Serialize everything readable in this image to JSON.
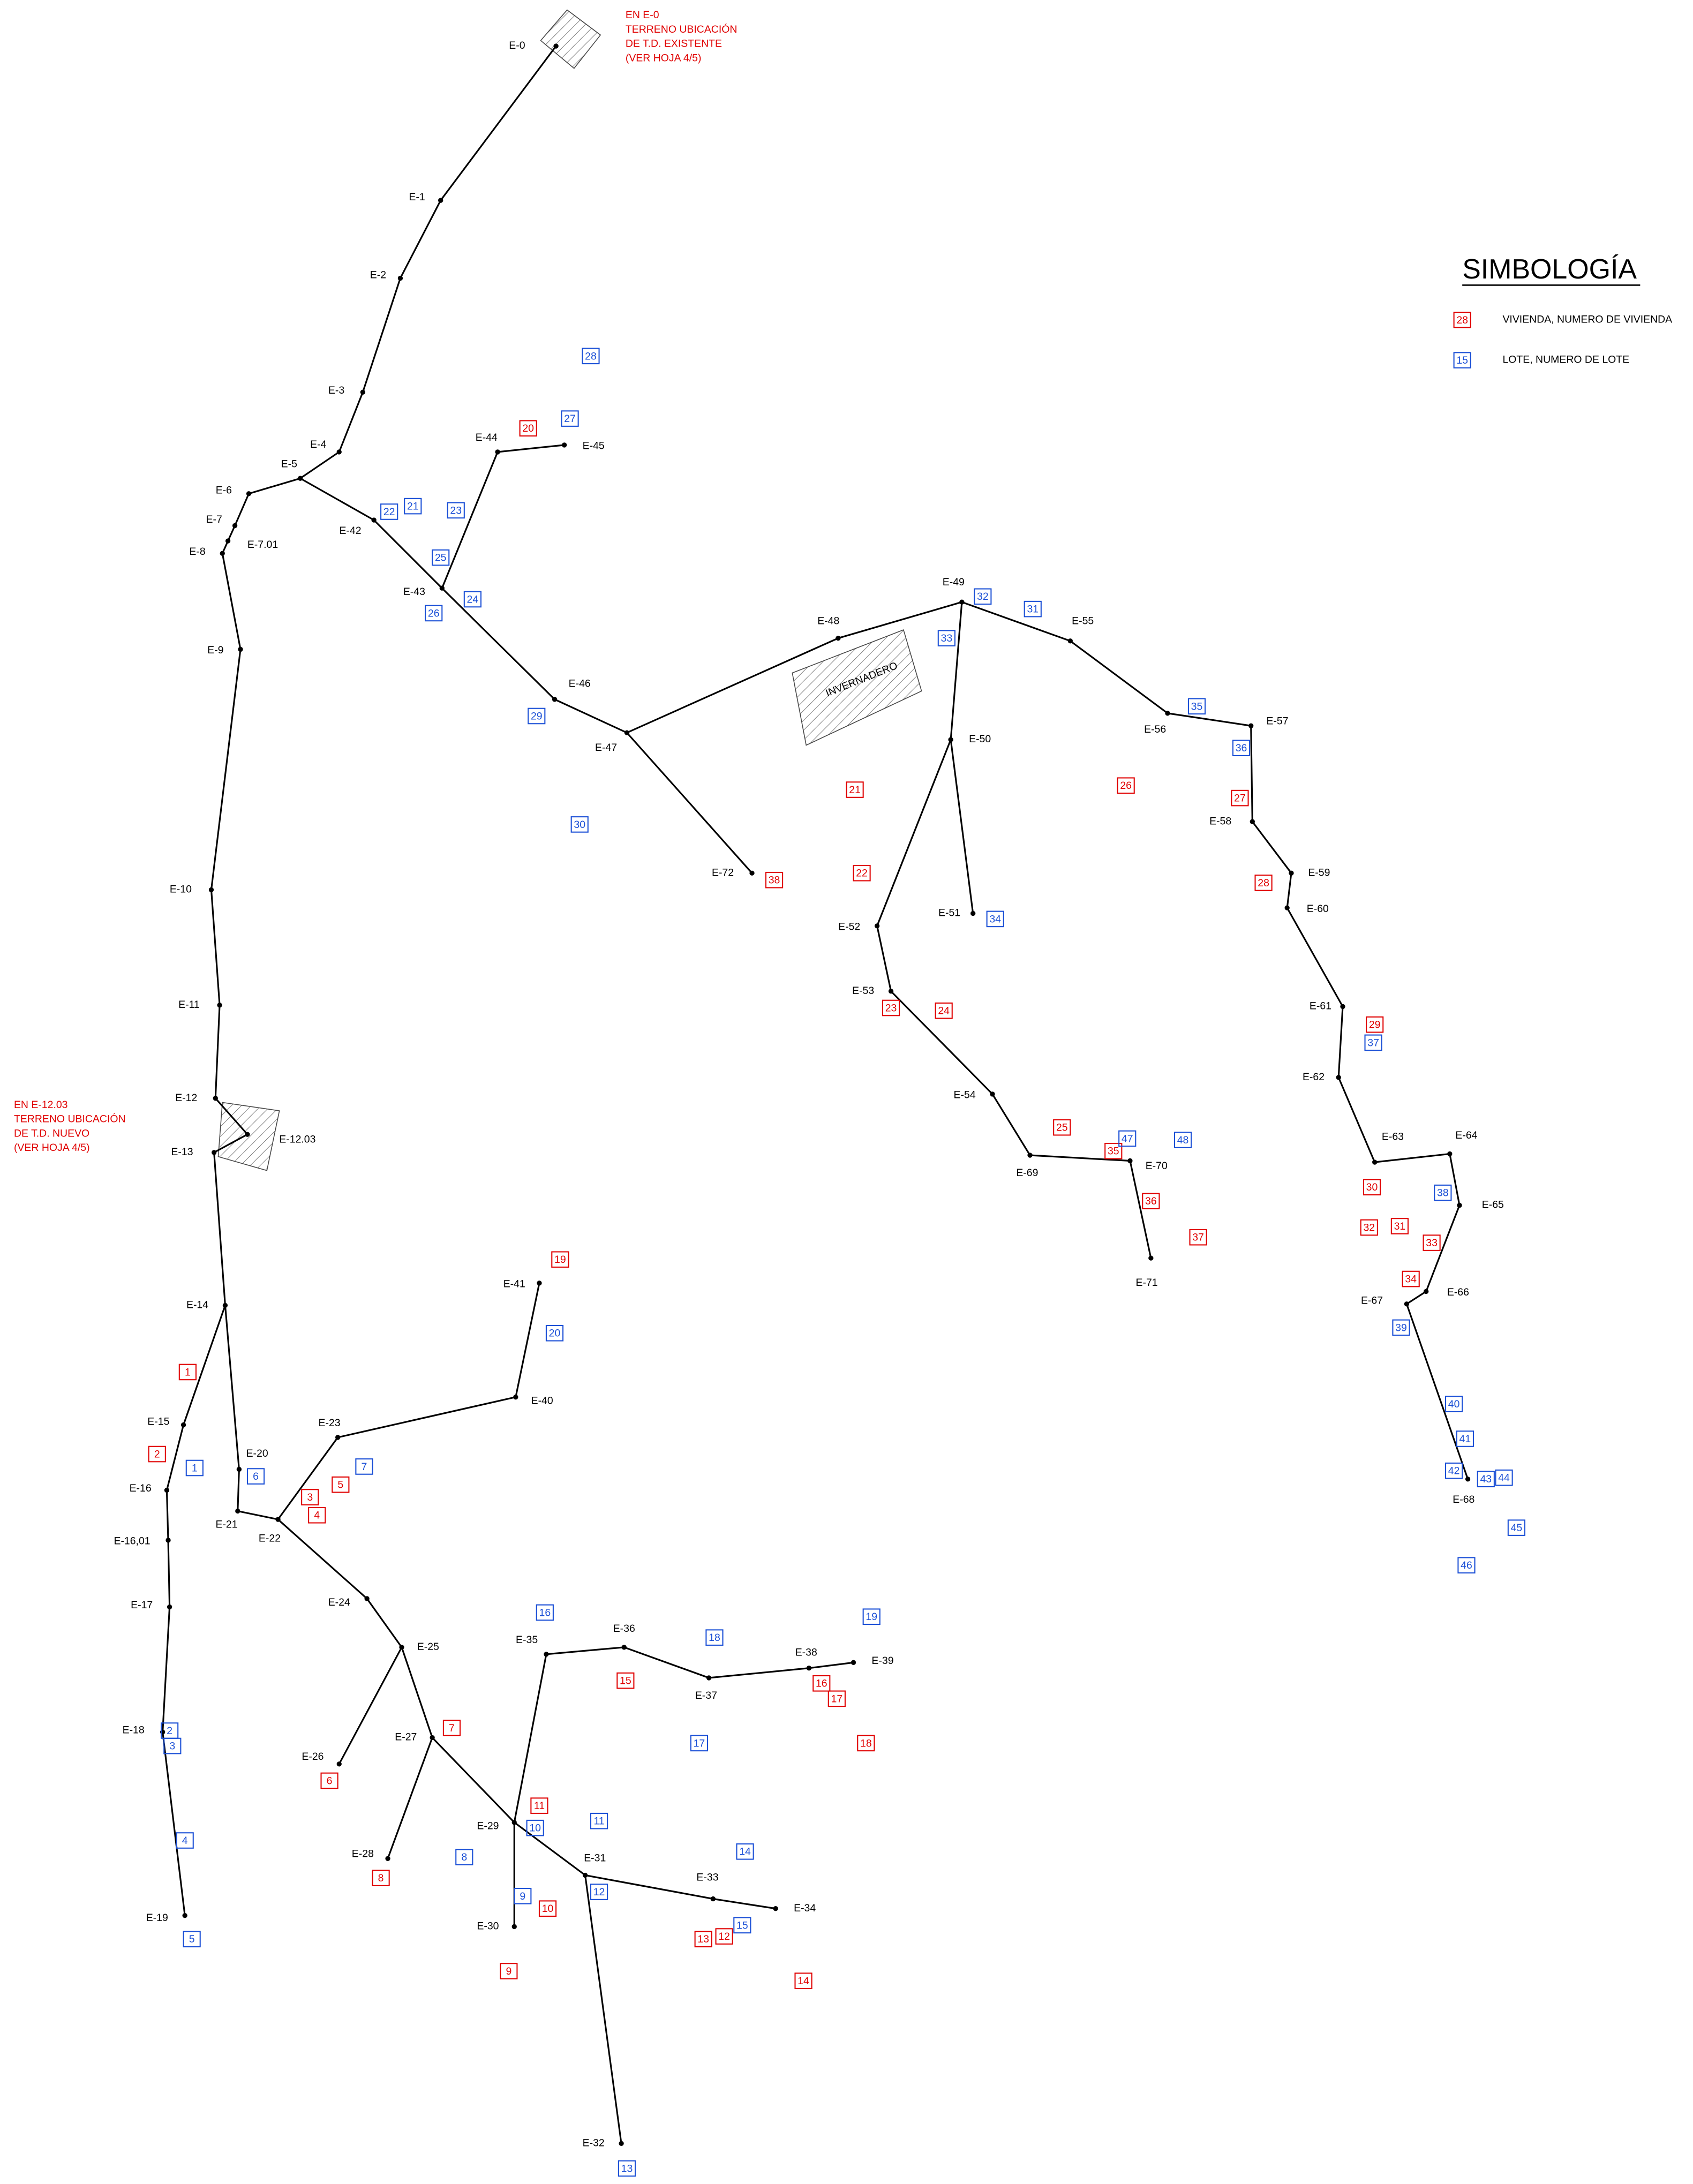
{
  "title": "SIMBOLOGÍA",
  "legend": [
    {
      "sample": "28",
      "label": "VIVIENDA, NUMERO DE VIVIENDA"
    },
    {
      "sample": "15",
      "label": "LOTE, NUMERO DE LOTE"
    }
  ],
  "notes": [
    [
      "EN E-0",
      "TERRENO UBICACIÓN",
      "DE T.D. EXISTENTE",
      "(VER HOJA 4/5)"
    ],
    [
      "EN E-12.03",
      "TERRENO UBICACIÓN",
      "DE T.D. NUEVO",
      "(VER HOJA 4/5)"
    ]
  ],
  "area_label": "INVERNADERO",
  "nodes": [
    "E-0",
    "E-1",
    "E-2",
    "E-3",
    "E-4",
    "E-5",
    "E-6",
    "E-7",
    "E-7.01",
    "E-8",
    "E-9",
    "E-10",
    "E-11",
    "E-12",
    "E-12.03",
    "E-13",
    "E-14",
    "E-15",
    "E-16",
    "E-16,01",
    "E-17",
    "E-18",
    "E-19",
    "E-20",
    "E-21",
    "E-22",
    "E-23",
    "E-24",
    "E-25",
    "E-26",
    "E-27",
    "E-28",
    "E-29",
    "E-30",
    "E-31",
    "E-32",
    "E-33",
    "E-34",
    "E-35",
    "E-36",
    "E-37",
    "E-38",
    "E-39",
    "E-40",
    "E-41",
    "E-42",
    "E-43",
    "E-44",
    "E-45",
    "E-46",
    "E-47",
    "E-48",
    "E-49",
    "E-50",
    "E-51",
    "E-52",
    "E-53",
    "E-54",
    "E-55",
    "E-56",
    "E-57",
    "E-58",
    "E-59",
    "E-60",
    "E-61",
    "E-62",
    "E-63",
    "E-64",
    "E-65",
    "E-66",
    "E-67",
    "E-68",
    "E-69",
    "E-70",
    "E-71",
    "E-72"
  ],
  "viviendas": [
    "1",
    "2",
    "3",
    "4",
    "5",
    "6",
    "7",
    "8",
    "9",
    "10",
    "11",
    "12",
    "13",
    "14",
    "15",
    "16",
    "17",
    "18",
    "19",
    "20",
    "21",
    "22",
    "23",
    "24",
    "25",
    "26",
    "27",
    "28",
    "29",
    "30",
    "31",
    "32",
    "33",
    "34",
    "35",
    "36",
    "37",
    "38"
  ],
  "lotes": [
    "1",
    "2",
    "3",
    "4",
    "5",
    "6",
    "7",
    "8",
    "9",
    "10",
    "11",
    "12",
    "13",
    "14",
    "15",
    "16",
    "17",
    "18",
    "19",
    "20",
    "21",
    "22",
    "23",
    "24",
    "25",
    "26",
    "27",
    "28",
    "29",
    "30",
    "31",
    "32",
    "33",
    "34",
    "35",
    "36",
    "37",
    "38",
    "39",
    "40",
    "41",
    "42",
    "43",
    "44",
    "45",
    "46",
    "47",
    "48"
  ]
}
